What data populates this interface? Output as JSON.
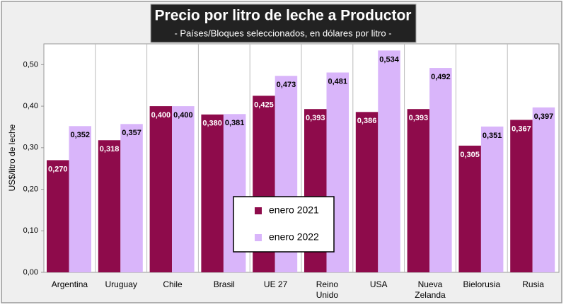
{
  "chart_data": {
    "type": "bar",
    "title": "Precio por litro de leche a Productor",
    "subtitle": "- Países/Bloques seleccionados, en dólares por litro -",
    "y_label": "US$/litro de leche",
    "categories": [
      "Argentina",
      "Uruguay",
      "Chile",
      "Brasil",
      "UE 27",
      "Reino Unido",
      "USA",
      "Nueva Zelanda",
      "Bielorusia",
      "Rusia"
    ],
    "series": [
      {
        "name": "enero 2021",
        "color": "#8e0b4b",
        "values": [
          0.27,
          0.318,
          0.4,
          0.38,
          0.425,
          0.393,
          0.386,
          0.393,
          0.305,
          0.367
        ],
        "value_labels": [
          "0,270",
          "0,318",
          "0,400",
          "0,380",
          "0,425",
          "0,393",
          "0,386",
          "0,393",
          "0,305",
          "0,367"
        ]
      },
      {
        "name": "enero 2022",
        "color": "#d9b5fa",
        "values": [
          0.352,
          0.357,
          0.4,
          0.381,
          0.473,
          0.481,
          0.534,
          0.492,
          0.351,
          0.397
        ],
        "value_labels": [
          "0,352",
          "0,357",
          "0,400",
          "0,381",
          "0,473",
          "0,481",
          "0,534",
          "0,492",
          "0,351",
          "0,397"
        ]
      }
    ],
    "ylim": [
      0,
      0.55
    ],
    "yticks": [
      {
        "value": 0,
        "label": "0,00"
      },
      {
        "value": 0.1,
        "label": "0,10"
      },
      {
        "value": 0.2,
        "label": "0,20"
      },
      {
        "value": 0.3,
        "label": "0,30"
      },
      {
        "value": 0.4,
        "label": "0,40"
      },
      {
        "value": 0.5,
        "label": "0,50"
      }
    ],
    "legend_position": "center"
  }
}
